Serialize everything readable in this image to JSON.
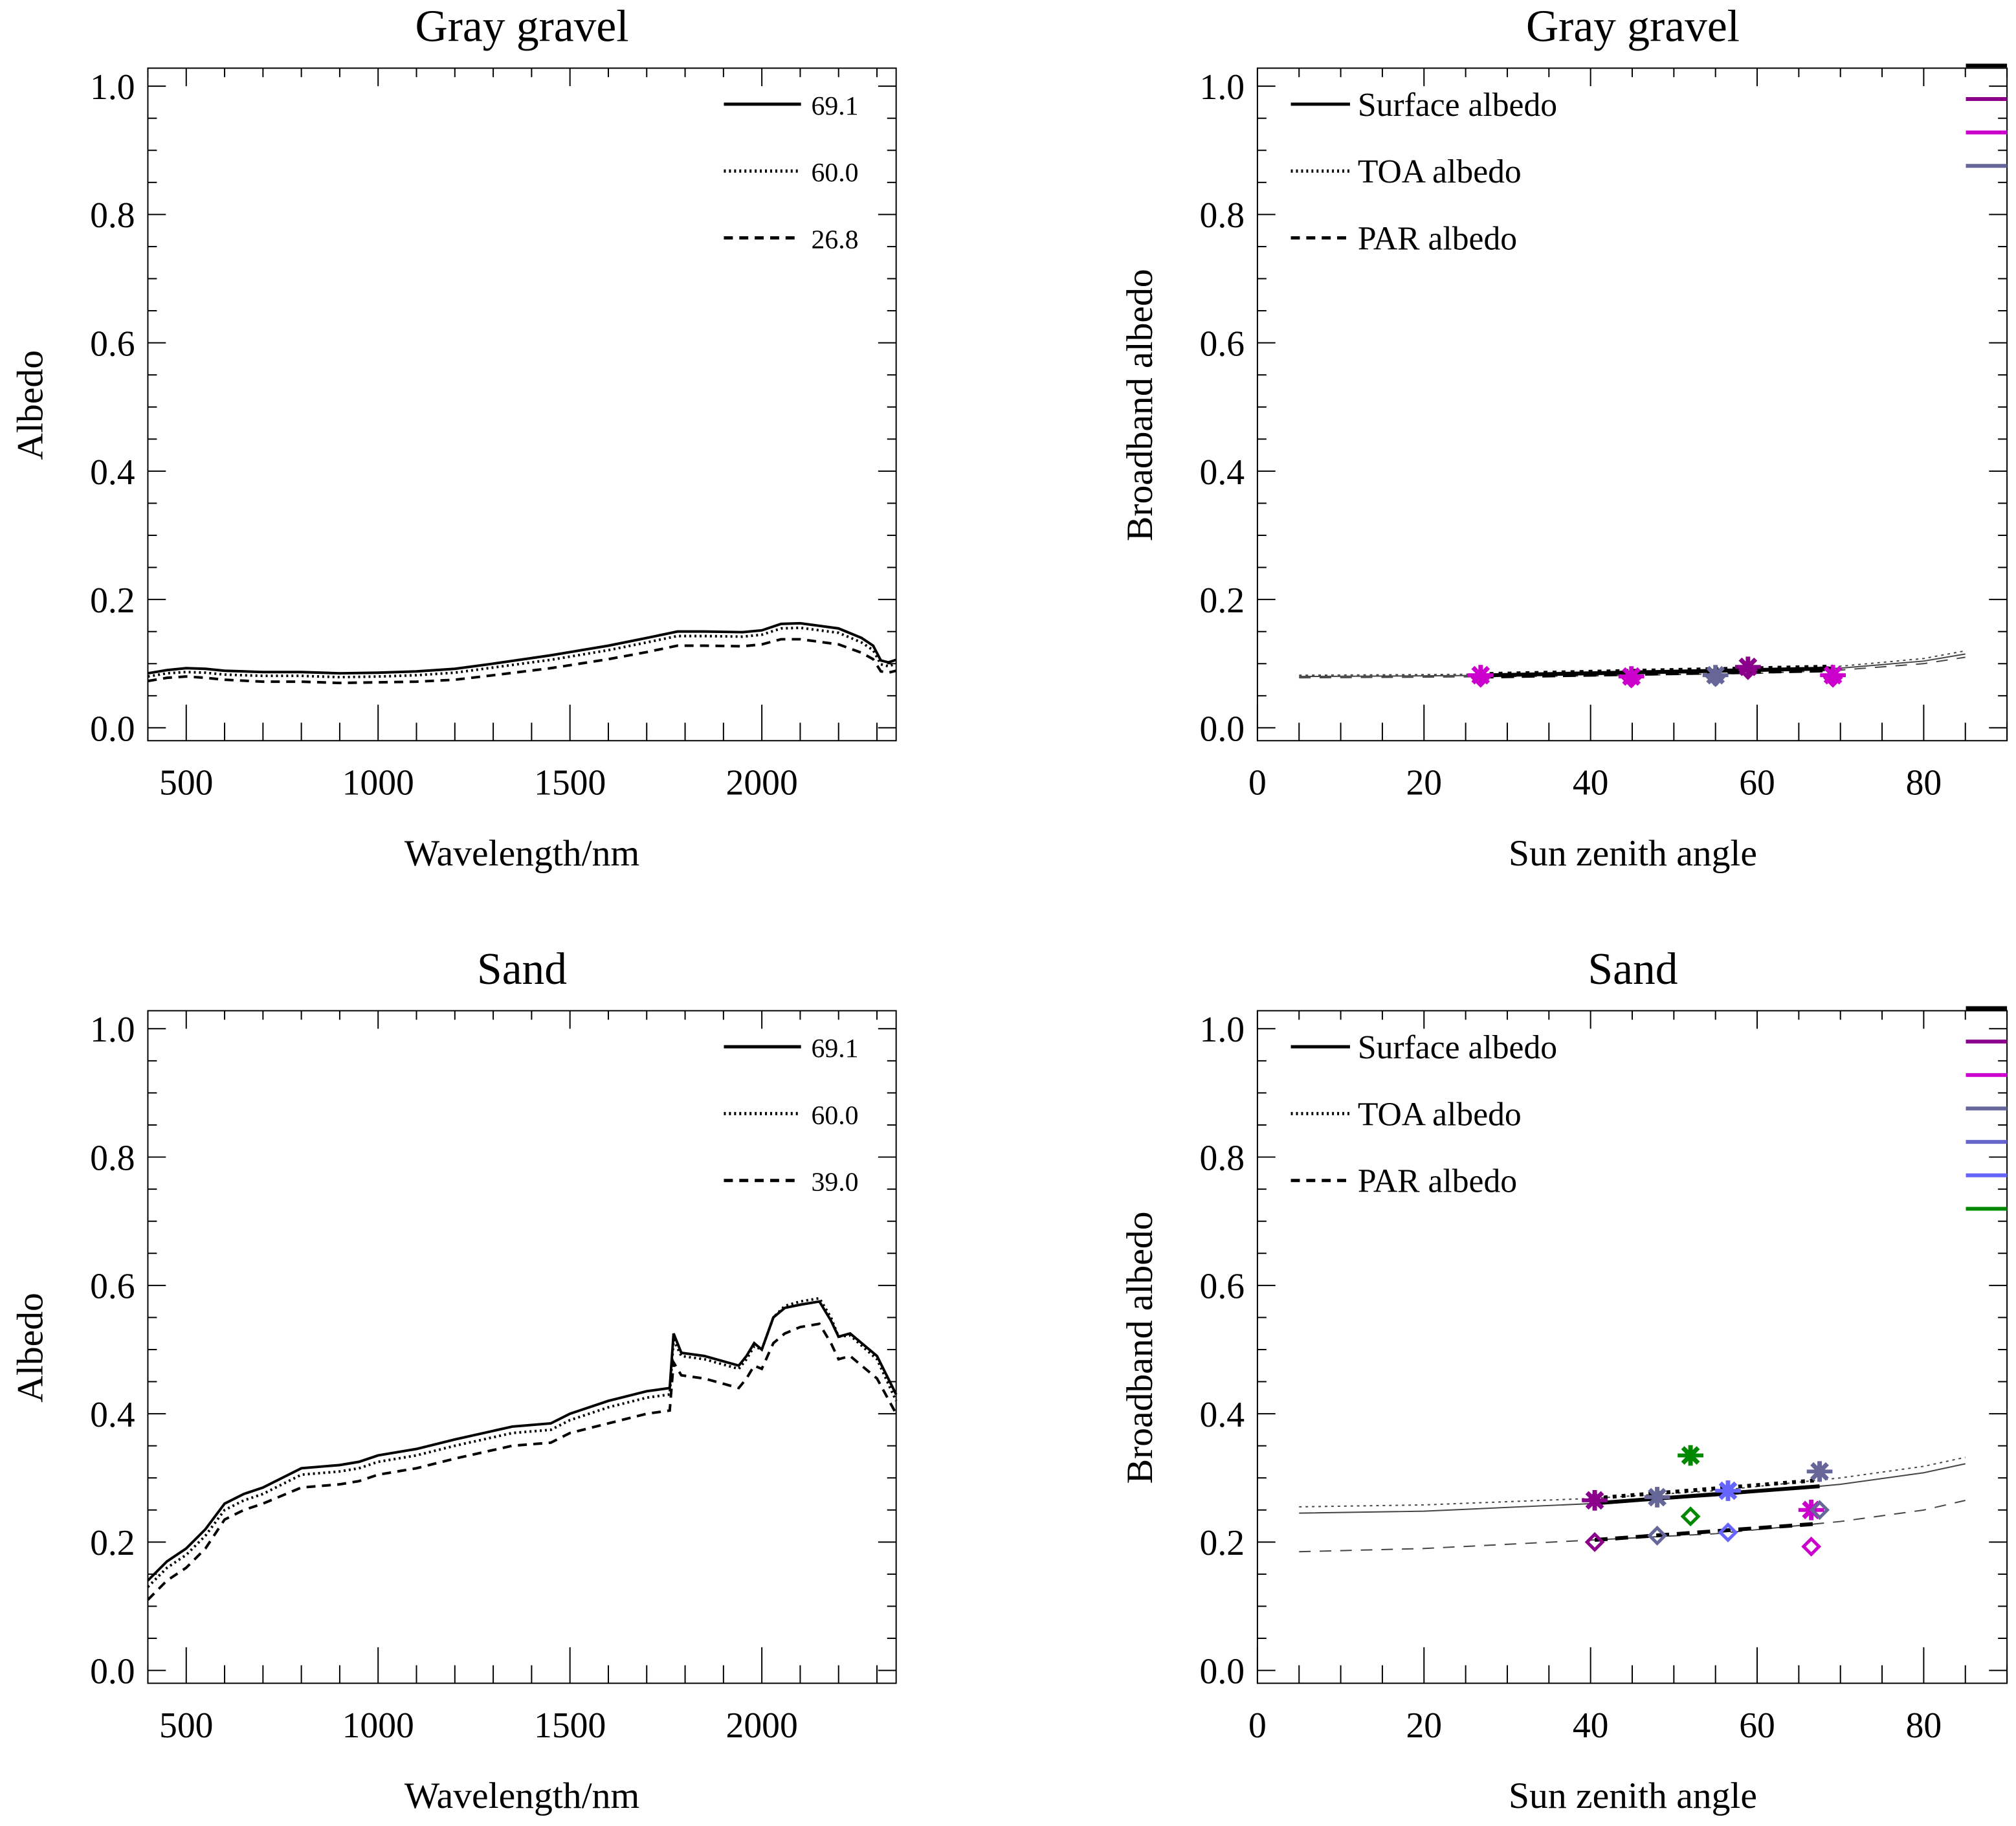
{
  "chart_data": [
    {
      "type": "line",
      "title": "Gray gravel",
      "xlabel": "Wavelength/nm",
      "ylabel": "Albedo",
      "xlim": [
        400,
        2350
      ],
      "ylim": [
        0,
        1.0
      ],
      "xticks": [
        500,
        1000,
        1500,
        2000
      ],
      "yticks": [
        "0.0",
        "0.2",
        "0.4",
        "0.6",
        "0.8",
        "1.0"
      ],
      "legend_position": "top-right",
      "series": [
        {
          "name": "69.1",
          "style": "solid",
          "x": [
            400,
            450,
            500,
            550,
            600,
            700,
            800,
            900,
            1000,
            1100,
            1200,
            1300,
            1450,
            1600,
            1700,
            1780,
            1850,
            1950,
            2000,
            2050,
            2100,
            2200,
            2260,
            2290,
            2310,
            2330,
            2350
          ],
          "y": [
            0.085,
            0.09,
            0.093,
            0.092,
            0.089,
            0.087,
            0.087,
            0.085,
            0.086,
            0.088,
            0.092,
            0.1,
            0.113,
            0.128,
            0.14,
            0.15,
            0.15,
            0.149,
            0.152,
            0.162,
            0.163,
            0.155,
            0.14,
            0.128,
            0.105,
            0.102,
            0.106
          ]
        },
        {
          "name": "60.0",
          "style": "dotted",
          "x": [
            400,
            450,
            500,
            550,
            600,
            700,
            800,
            900,
            1000,
            1100,
            1200,
            1300,
            1450,
            1600,
            1700,
            1780,
            1850,
            1950,
            2000,
            2050,
            2100,
            2200,
            2260,
            2290,
            2310,
            2330,
            2350
          ],
          "y": [
            0.08,
            0.085,
            0.087,
            0.086,
            0.083,
            0.081,
            0.081,
            0.079,
            0.08,
            0.082,
            0.086,
            0.094,
            0.106,
            0.121,
            0.133,
            0.143,
            0.143,
            0.142,
            0.145,
            0.155,
            0.156,
            0.148,
            0.133,
            0.121,
            0.099,
            0.096,
            0.1
          ]
        },
        {
          "name": "26.8",
          "style": "dashed",
          "x": [
            400,
            450,
            500,
            550,
            600,
            700,
            800,
            900,
            1000,
            1100,
            1200,
            1300,
            1450,
            1600,
            1700,
            1780,
            1850,
            1950,
            2000,
            2050,
            2100,
            2200,
            2260,
            2290,
            2310,
            2330,
            2350
          ],
          "y": [
            0.073,
            0.078,
            0.08,
            0.078,
            0.075,
            0.072,
            0.072,
            0.07,
            0.071,
            0.072,
            0.075,
            0.082,
            0.093,
            0.107,
            0.118,
            0.128,
            0.128,
            0.127,
            0.13,
            0.138,
            0.138,
            0.13,
            0.117,
            0.107,
            0.088,
            0.086,
            0.089
          ]
        }
      ]
    },
    {
      "type": "scatter",
      "title": "Gray gravel",
      "xlabel": "Sun zenith angle",
      "ylabel": "Broadband albedo",
      "xlim": [
        0,
        90
      ],
      "ylim": [
        0,
        1.0
      ],
      "xticks": [
        0,
        20,
        40,
        60,
        80
      ],
      "yticks": [
        "0.0",
        "0.2",
        "0.4",
        "0.6",
        "0.8",
        "1.0"
      ],
      "legend_position": "top-left",
      "legend": [
        {
          "name": "Surface albedo",
          "style": "solid"
        },
        {
          "name": "TOA albedo",
          "style": "dotted"
        },
        {
          "name": "PAR albedo",
          "style": "dashed"
        }
      ],
      "curves": [
        {
          "name": "Surface albedo",
          "style": "solid",
          "x": [
            5,
            20,
            40,
            60,
            70,
            80,
            85
          ],
          "y": [
            0.08,
            0.081,
            0.083,
            0.088,
            0.093,
            0.104,
            0.115
          ]
        },
        {
          "name": "TOA albedo",
          "style": "dotted",
          "x": [
            5,
            20,
            40,
            60,
            70,
            80,
            85
          ],
          "y": [
            0.082,
            0.083,
            0.085,
            0.09,
            0.096,
            0.108,
            0.12
          ]
        },
        {
          "name": "PAR albedo",
          "style": "dashed",
          "x": [
            5,
            20,
            40,
            60,
            70,
            80,
            85
          ],
          "y": [
            0.078,
            0.079,
            0.081,
            0.085,
            0.09,
            0.1,
            0.11
          ]
        }
      ],
      "points": [
        {
          "x": 26.8,
          "surface": 0.082,
          "toa": 0.084,
          "par": 0.078,
          "color": "#cc00cc"
        },
        {
          "x": 44.9,
          "surface": 0.08,
          "toa": 0.082,
          "par": 0.077,
          "color": "#cc00cc"
        },
        {
          "x": 55.0,
          "surface": 0.082,
          "toa": 0.084,
          "par": 0.079,
          "color": "#666699"
        },
        {
          "x": 58.9,
          "surface": 0.095,
          "toa": 0.097,
          "par": 0.09,
          "color": "#8b008b"
        },
        {
          "x": 69.1,
          "surface": 0.082,
          "toa": 0.084,
          "par": 0.078,
          "color": "#cc00cc"
        }
      ],
      "swatches": [
        "#000000",
        "#8b008b",
        "#cc00cc",
        "#666699"
      ]
    },
    {
      "type": "line",
      "title": "Sand",
      "xlabel": "Wavelength/nm",
      "ylabel": "Albedo",
      "xlim": [
        400,
        2350
      ],
      "ylim": [
        0,
        1.0
      ],
      "xticks": [
        500,
        1000,
        1500,
        2000
      ],
      "yticks": [
        "0.0",
        "0.2",
        "0.4",
        "0.6",
        "0.8",
        "1.0"
      ],
      "legend_position": "top-right",
      "series": [
        {
          "name": "69.1",
          "style": "solid",
          "x": [
            400,
            450,
            500,
            550,
            600,
            650,
            700,
            800,
            900,
            950,
            1000,
            1100,
            1200,
            1350,
            1450,
            1500,
            1600,
            1700,
            1760,
            1770,
            1790,
            1850,
            1940,
            1960,
            1980,
            2000,
            2030,
            2060,
            2100,
            2150,
            2180,
            2200,
            2230,
            2300,
            2350
          ],
          "y": [
            0.14,
            0.17,
            0.19,
            0.22,
            0.26,
            0.275,
            0.285,
            0.315,
            0.32,
            0.325,
            0.335,
            0.345,
            0.36,
            0.38,
            0.385,
            0.4,
            0.42,
            0.435,
            0.44,
            0.525,
            0.495,
            0.49,
            0.475,
            0.49,
            0.51,
            0.5,
            0.55,
            0.565,
            0.57,
            0.575,
            0.545,
            0.52,
            0.525,
            0.49,
            0.43
          ]
        },
        {
          "name": "60.0",
          "style": "dotted",
          "x": [
            400,
            450,
            500,
            550,
            600,
            650,
            700,
            800,
            900,
            950,
            1000,
            1100,
            1200,
            1350,
            1450,
            1500,
            1600,
            1700,
            1760,
            1770,
            1790,
            1850,
            1940,
            1960,
            1980,
            2000,
            2030,
            2060,
            2100,
            2150,
            2180,
            2200,
            2230,
            2300,
            2350
          ],
          "y": [
            0.13,
            0.16,
            0.18,
            0.21,
            0.25,
            0.265,
            0.275,
            0.305,
            0.31,
            0.315,
            0.325,
            0.335,
            0.35,
            0.37,
            0.375,
            0.39,
            0.41,
            0.425,
            0.43,
            0.515,
            0.49,
            0.485,
            0.47,
            0.485,
            0.505,
            0.5,
            0.55,
            0.568,
            0.575,
            0.58,
            0.55,
            0.52,
            0.522,
            0.485,
            0.42
          ]
        },
        {
          "name": "39.0",
          "style": "dashed",
          "x": [
            400,
            450,
            500,
            550,
            600,
            650,
            700,
            800,
            900,
            950,
            1000,
            1100,
            1200,
            1350,
            1450,
            1500,
            1600,
            1700,
            1760,
            1770,
            1790,
            1850,
            1940,
            1960,
            1980,
            2000,
            2030,
            2060,
            2100,
            2150,
            2180,
            2200,
            2230,
            2300,
            2350
          ],
          "y": [
            0.11,
            0.14,
            0.16,
            0.19,
            0.235,
            0.25,
            0.26,
            0.285,
            0.29,
            0.295,
            0.305,
            0.315,
            0.33,
            0.35,
            0.355,
            0.37,
            0.385,
            0.4,
            0.405,
            0.48,
            0.46,
            0.455,
            0.44,
            0.455,
            0.475,
            0.47,
            0.51,
            0.525,
            0.535,
            0.54,
            0.51,
            0.485,
            0.49,
            0.455,
            0.4
          ]
        }
      ]
    },
    {
      "type": "scatter",
      "title": "Sand",
      "xlabel": "Sun zenith angle",
      "ylabel": "Broadband albedo",
      "xlim": [
        0,
        90
      ],
      "ylim": [
        0,
        1.0
      ],
      "xticks": [
        0,
        20,
        40,
        60,
        80
      ],
      "yticks": [
        "0.0",
        "0.2",
        "0.4",
        "0.6",
        "0.8",
        "1.0"
      ],
      "legend_position": "top-left",
      "legend": [
        {
          "name": "Surface albedo",
          "style": "solid"
        },
        {
          "name": "TOA albedo",
          "style": "dotted"
        },
        {
          "name": "PAR albedo",
          "style": "dashed"
        }
      ],
      "curves": [
        {
          "name": "Surface albedo",
          "style": "solid",
          "x": [
            5,
            20,
            40,
            55,
            70,
            80,
            85
          ],
          "y": [
            0.245,
            0.248,
            0.26,
            0.272,
            0.29,
            0.308,
            0.322
          ]
        },
        {
          "name": "TOA albedo",
          "style": "dotted",
          "x": [
            5,
            20,
            40,
            55,
            70,
            80,
            85
          ],
          "y": [
            0.255,
            0.258,
            0.268,
            0.28,
            0.3,
            0.318,
            0.332
          ]
        },
        {
          "name": "PAR albedo",
          "style": "dashed",
          "x": [
            5,
            20,
            40,
            55,
            70,
            80,
            85
          ],
          "y": [
            0.185,
            0.19,
            0.203,
            0.213,
            0.232,
            0.25,
            0.265
          ]
        }
      ],
      "points": [
        {
          "x": 40.5,
          "surface": 0.265,
          "toa": 0.272,
          "par": 0.2,
          "color": "#8b008b"
        },
        {
          "x": 48.0,
          "surface": 0.27,
          "toa": 0.275,
          "par": 0.21,
          "color": "#666699"
        },
        {
          "x": 52.0,
          "surface": 0.335,
          "toa": 0.34,
          "par": 0.24,
          "color": "#008800"
        },
        {
          "x": 56.5,
          "surface": 0.28,
          "toa": 0.285,
          "par": 0.215,
          "color": "#6666ff"
        },
        {
          "x": 66.5,
          "surface": 0.25,
          "toa": 0.255,
          "par": 0.193,
          "color": "#cc00cc"
        },
        {
          "x": 67.5,
          "surface": 0.31,
          "toa": 0.315,
          "par": 0.25,
          "color": "#666699"
        }
      ],
      "swatches": [
        "#000000",
        "#8b008b",
        "#cc00cc",
        "#666699",
        "#6666cc",
        "#6666ff",
        "#008800"
      ]
    }
  ]
}
